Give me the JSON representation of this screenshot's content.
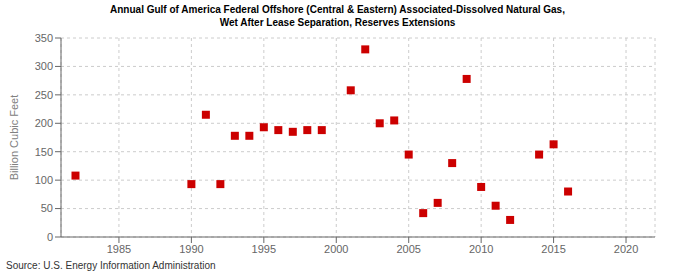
{
  "chart_data": {
    "type": "scatter",
    "title": "Annual Gulf of America Federal Offshore (Central & Eastern) Associated-Dissolved Natural Gas,\nWet After Lease Separation, Reserves Extensions",
    "y_label": "Billion Cubic Feet",
    "annotations": [
      "Source: U.S. Energy Information Administration"
    ],
    "x": [
      1982,
      1990,
      1991,
      1992,
      1993,
      1994,
      1995,
      1996,
      1997,
      1998,
      1999,
      2001,
      2002,
      2003,
      2004,
      2005,
      2006,
      2007,
      2008,
      2009,
      2010,
      2011,
      2012,
      2014,
      2015,
      2016
    ],
    "values": [
      108,
      93,
      215,
      93,
      178,
      178,
      193,
      188,
      185,
      188,
      188,
      258,
      330,
      200,
      205,
      145,
      42,
      60,
      130,
      278,
      88,
      55,
      30,
      145,
      163,
      80
    ],
    "color": "#cc0000",
    "marker": "square",
    "xlim": [
      1981,
      2022
    ],
    "ylim": [
      0,
      350
    ],
    "xticks": [
      1985,
      1990,
      1995,
      2000,
      2005,
      2010,
      2015,
      2020
    ],
    "yticks": [
      0,
      50,
      100,
      150,
      200,
      250,
      300,
      350
    ],
    "grid": true
  }
}
